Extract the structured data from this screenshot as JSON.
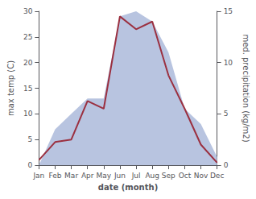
{
  "chart_data": {
    "type": "line",
    "xlabel": "date (month)",
    "ylabel": "max temp (C)",
    "y2label": "med. precipitation (kg/m2)",
    "categories": [
      "Jan",
      "Feb",
      "Mar",
      "Apr",
      "May",
      "Jun",
      "Jul",
      "Aug",
      "Sep",
      "Oct",
      "Nov",
      "Dec"
    ],
    "series": [
      {
        "type": "area",
        "color": "#b8c4e0",
        "axis": "y2",
        "values": [
          0.0,
          3.5,
          5.0,
          6.5,
          6.5,
          14.5,
          15.0,
          14.0,
          11.0,
          5.5,
          4.0,
          0.8
        ]
      },
      {
        "type": "line",
        "color": "#9B3040",
        "values": [
          1.0,
          4.5,
          5.0,
          12.5,
          11.0,
          29.0,
          26.5,
          28.0,
          17.5,
          11.0,
          4.0,
          0.5
        ]
      }
    ],
    "ylim": [
      0,
      30
    ],
    "yticks": [
      0,
      5,
      10,
      15,
      20,
      25,
      30
    ],
    "y2lim": [
      0,
      15
    ],
    "y2ticks": [
      0,
      5,
      10,
      15
    ],
    "grid": false
  }
}
